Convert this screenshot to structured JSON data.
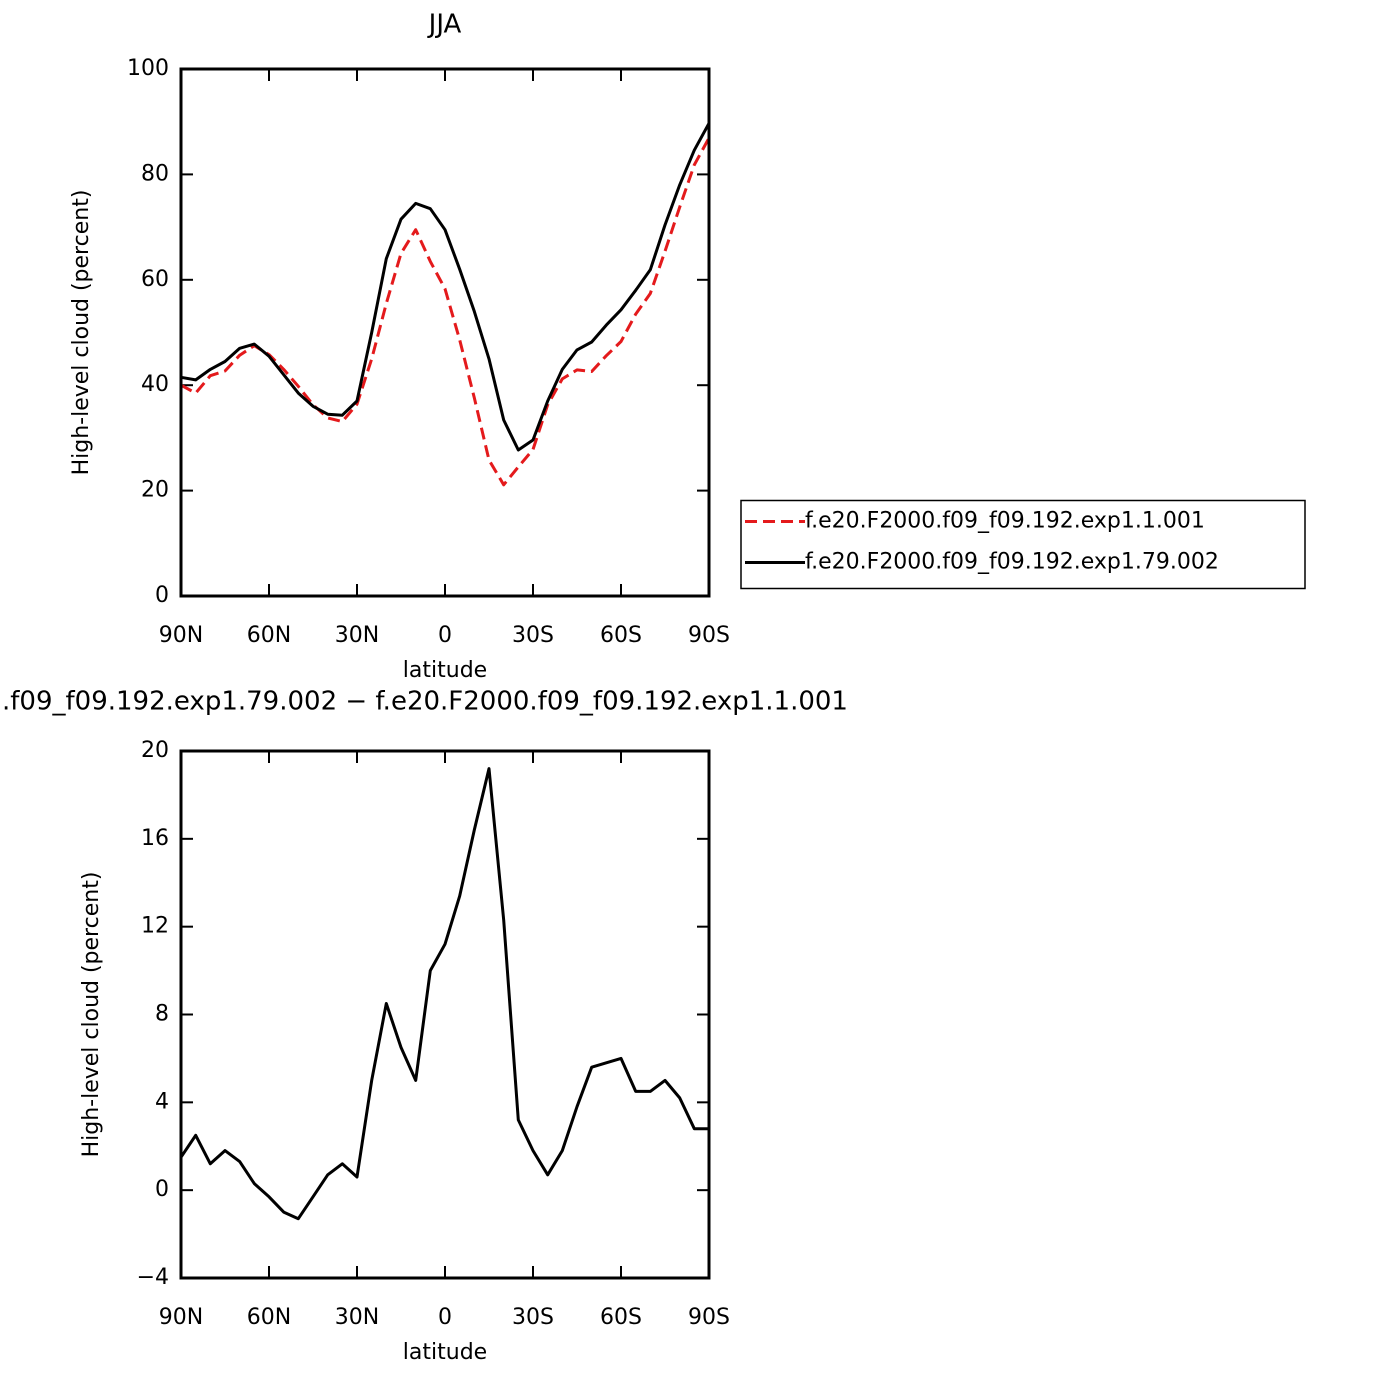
{
  "chart_data": [
    {
      "type": "line",
      "title": "JJA",
      "xlabel": "latitude",
      "ylabel": "High-level cloud (percent)",
      "x": [
        90,
        85,
        80,
        75,
        70,
        65,
        60,
        55,
        50,
        45,
        40,
        35,
        30,
        25,
        20,
        15,
        10,
        5,
        0,
        -5,
        -10,
        -15,
        -20,
        -25,
        -30,
        -35,
        -40,
        -45,
        -50,
        -55,
        -60,
        -65,
        -70,
        -75,
        -80,
        -85,
        -90
      ],
      "xlim": [
        90,
        -90
      ],
      "xticks": [
        {
          "value": 90,
          "label": "90N"
        },
        {
          "value": 60,
          "label": "60N"
        },
        {
          "value": 30,
          "label": "30N"
        },
        0,
        {
          "value": -30,
          "label": "30S"
        },
        {
          "value": -60,
          "label": "60S"
        },
        {
          "value": -90,
          "label": "90S"
        }
      ],
      "ylim": [
        0,
        100
      ],
      "yticks": [
        0,
        20,
        40,
        60,
        80,
        100
      ],
      "legend": "right",
      "series": [
        {
          "name": "f.e20.F2000.f09_f09.192.exp1.1.001",
          "color": "#e41a1c",
          "dash": true,
          "values": [
            40,
            38.5,
            41.8,
            42.7,
            45.7,
            47.5,
            45.8,
            43,
            39.8,
            36.3,
            33.8,
            33.1,
            36.4,
            45,
            55.5,
            65,
            69.5,
            63.5,
            58.3,
            48.6,
            37.6,
            25.8,
            21.1,
            24.5,
            27.8,
            36.3,
            41.2,
            42.9,
            42.6,
            45.6,
            48.3,
            53.5,
            57.4,
            65.4,
            73.8,
            81.8,
            86.9
          ]
        },
        {
          "name": "f.e20.F2000.f09_f09.192.exp1.79.002",
          "color": "#000000",
          "dash": false,
          "values": [
            41.5,
            41,
            43,
            44.5,
            47,
            47.8,
            45.5,
            42,
            38.5,
            36,
            34.5,
            34.3,
            37,
            50,
            64,
            71.5,
            74.5,
            73.5,
            69.5,
            62,
            54,
            45,
            33.4,
            27.7,
            29.6,
            37,
            43,
            46.7,
            48.2,
            51.4,
            54.3,
            58,
            61.9,
            70.4,
            78,
            84.6,
            89.7
          ]
        }
      ]
    },
    {
      "type": "line",
      "title": ".f09_f09.192.exp1.79.002 − f.e20.F2000.f09_f09.192.exp1.1.001",
      "xlabel": "latitude",
      "ylabel": "High-level cloud (percent)",
      "x": [
        90,
        85,
        80,
        75,
        70,
        65,
        60,
        55,
        50,
        45,
        40,
        35,
        30,
        25,
        20,
        15,
        10,
        5,
        0,
        -5,
        -10,
        -15,
        -20,
        -25,
        -30,
        -35,
        -40,
        -45,
        -50,
        -55,
        -60,
        -65,
        -70,
        -75,
        -80,
        -85,
        -90
      ],
      "xlim": [
        90,
        -90
      ],
      "xticks": [
        {
          "value": 90,
          "label": "90N"
        },
        {
          "value": 60,
          "label": "60N"
        },
        {
          "value": 30,
          "label": "30N"
        },
        0,
        {
          "value": -30,
          "label": "30S"
        },
        {
          "value": -60,
          "label": "60S"
        },
        {
          "value": -90,
          "label": "90S"
        }
      ],
      "ylim": [
        -4,
        20
      ],
      "yticks": [
        {
          "value": -4,
          "label": "−4"
        },
        0,
        4,
        8,
        12,
        16,
        20
      ],
      "series": [
        {
          "color": "#000000",
          "dash": false,
          "values": [
            1.5,
            2.5,
            1.2,
            1.8,
            1.3,
            0.3,
            -0.3,
            -1.0,
            -1.3,
            -0.3,
            0.7,
            1.2,
            0.6,
            5.0,
            8.5,
            6.5,
            5.0,
            10.0,
            11.2,
            13.4,
            16.4,
            19.2,
            12.3,
            3.2,
            1.8,
            0.7,
            1.8,
            3.8,
            5.6,
            5.8,
            6.0,
            4.5,
            4.5,
            5.0,
            4.2,
            2.8,
            2.8
          ]
        }
      ]
    }
  ]
}
